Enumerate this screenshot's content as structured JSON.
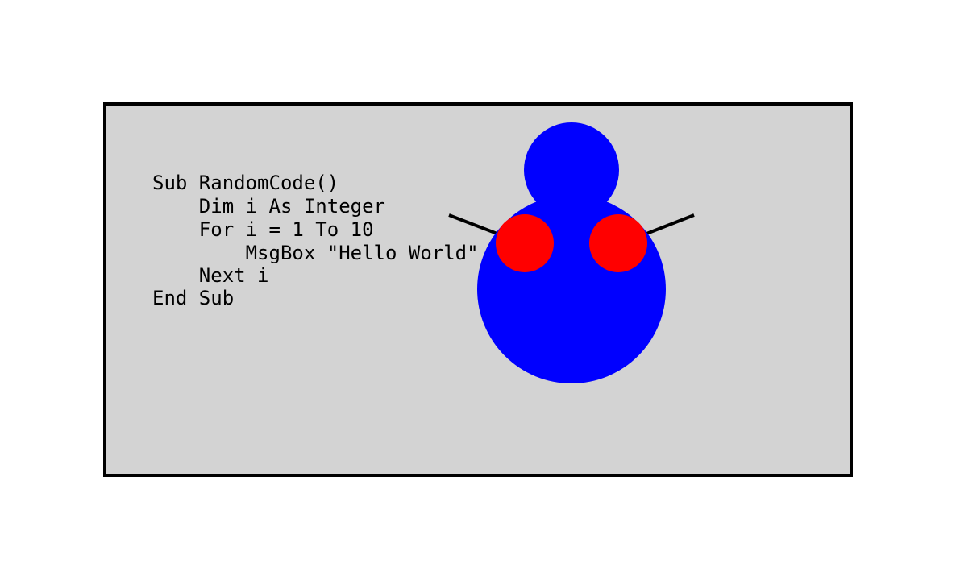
{
  "colors": {
    "page_background": "#ffffff",
    "panel_fill": "#d3d3d3",
    "panel_border": "#000000",
    "code_text": "#000000",
    "figure_body": "#0000ff",
    "figure_cheeks": "#ff0000",
    "figure_arms": "#000000"
  },
  "code": {
    "lines": [
      "Sub RandomCode()",
      "    Dim i As Integer",
      "    For i = 1 To 10",
      "        MsgBox \"Hello World\"",
      "    Next i",
      "End Sub"
    ]
  },
  "figure": {
    "parts": [
      "head",
      "body",
      "left-cheek",
      "right-cheek",
      "left-arm",
      "right-arm"
    ]
  }
}
